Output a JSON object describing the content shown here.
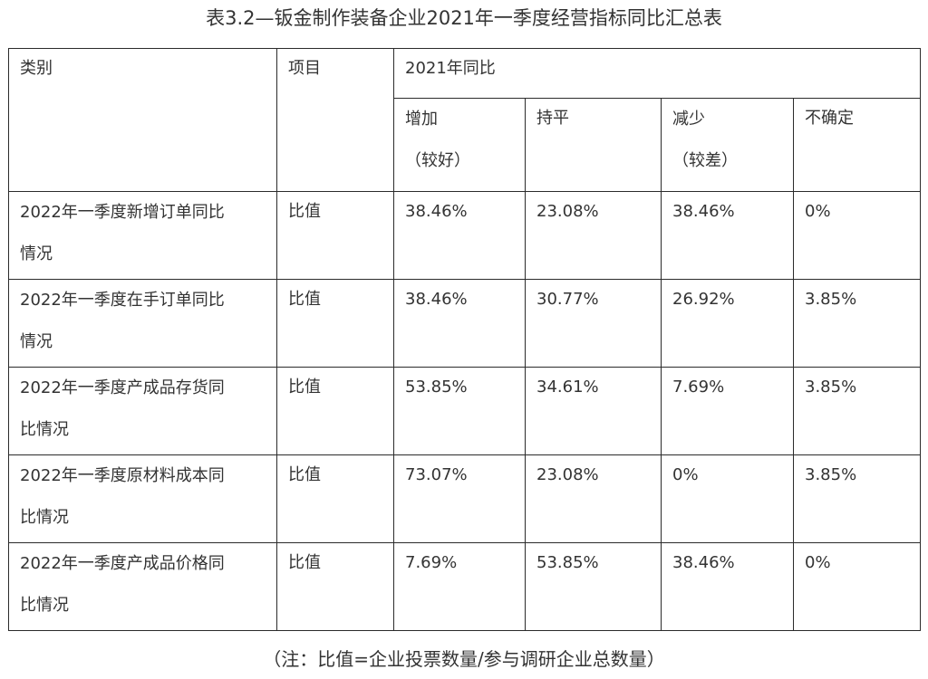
{
  "title": "表3.2—钣金制作装备企业2021年一季度经营指标同比汇总表",
  "header": {
    "category": "类别",
    "item": "项目",
    "group": "2021年同比",
    "increase_line1": "增加",
    "increase_line2": "（较好）",
    "flat": "持平",
    "decrease_line1": "减少",
    "decrease_line2": "（较差）",
    "uncertain": "不确定"
  },
  "rows": [
    {
      "category_line1": "2022年一季度新增订单同比",
      "category_line2": "情况",
      "item": "比值",
      "increase": "38.46%",
      "flat": "23.08%",
      "decrease": "38.46%",
      "uncertain": "0%"
    },
    {
      "category_line1": "2022年一季度在手订单同比",
      "category_line2": "情况",
      "item": "比值",
      "increase": "38.46%",
      "flat": "30.77%",
      "decrease": "26.92%",
      "uncertain": "3.85%"
    },
    {
      "category_line1": "2022年一季度产成品存货同",
      "category_line2": "比情况",
      "item": "比值",
      "increase": "53.85%",
      "flat": "34.61%",
      "decrease": "7.69%",
      "uncertain": "3.85%"
    },
    {
      "category_line1": "2022年一季度原材料成本同",
      "category_line2": "比情况",
      "item": "比值",
      "increase": "73.07%",
      "flat": "23.08%",
      "decrease": "0%",
      "uncertain": "3.85%"
    },
    {
      "category_line1": "2022年一季度产成品价格同",
      "category_line2": "比情况",
      "item": "比值",
      "increase": "7.69%",
      "flat": "53.85%",
      "decrease": "38.46%",
      "uncertain": "0%"
    }
  ],
  "footnote": "（注：比值=企业投票数量/参与调研企业总数量）"
}
